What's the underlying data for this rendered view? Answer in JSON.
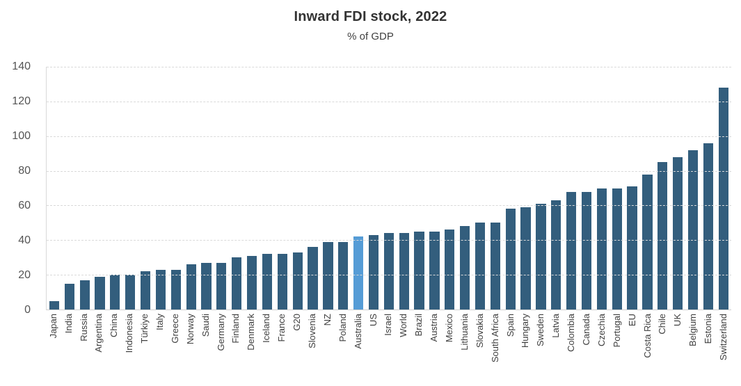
{
  "title": "Inward FDI stock, 2022",
  "subtitle": "% of GDP",
  "chart_data": {
    "type": "bar",
    "title": "Inward FDI stock, 2022",
    "subtitle": "% of GDP",
    "ylabel": "% of GDP",
    "categories": [
      "Japan",
      "India",
      "Russia",
      "Argentina",
      "China",
      "Indonesia",
      "Türkiye",
      "Italy",
      "Greece",
      "Norway",
      "Saudi",
      "Germany",
      "Finland",
      "Denmark",
      "Iceland",
      "France",
      "G20",
      "Slovenia",
      "NZ",
      "Poland",
      "Australia",
      "US",
      "Israel",
      "World",
      "Brazil",
      "Austria",
      "Mexico",
      "Lithuania",
      "Slovakia",
      "South Africa",
      "Spain",
      "Hungary",
      "Sweden",
      "Latvia",
      "Colombia",
      "Canada",
      "Czechia",
      "Portugal",
      "EU",
      "Costa Rica",
      "Chile",
      "UK",
      "Belgium",
      "Estonia",
      "Switzerland"
    ],
    "values": [
      5,
      15,
      17,
      19,
      20,
      20,
      22,
      23,
      23,
      26,
      27,
      27,
      30,
      31,
      32,
      32,
      33,
      36,
      39,
      39,
      42,
      43,
      44,
      44,
      45,
      45,
      46,
      48,
      50,
      50,
      58,
      59,
      61,
      63,
      68,
      68,
      70,
      70,
      71,
      78,
      85,
      88,
      92,
      96,
      128
    ],
    "highlight_category": "Australia",
    "ylim": [
      0,
      140
    ],
    "yticks": [
      0,
      20,
      40,
      60,
      80,
      100,
      120,
      140
    ],
    "grid": true,
    "gridline_style": "dashed",
    "legend": "none",
    "bar_color": "#335e7d",
    "highlight_color": "#559cd6",
    "gridline_color": "#d9d9d9"
  }
}
